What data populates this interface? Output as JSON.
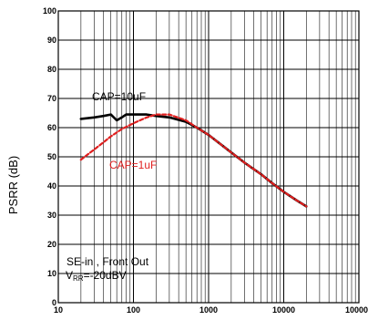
{
  "chart_data": {
    "type": "line",
    "title": "",
    "xlabel": "",
    "ylabel": "PSRR (dB)",
    "x_scale": "log",
    "xlim": [
      10,
      100000
    ],
    "ylim": [
      0,
      100
    ],
    "x_ticks": [
      "10",
      "100",
      "1000",
      "10000",
      "100000"
    ],
    "y_ticks": [
      "0",
      "10",
      "20",
      "30",
      "40",
      "50",
      "60",
      "70",
      "80",
      "90",
      "100"
    ],
    "grid": true,
    "series": [
      {
        "name": "CAP=10uF",
        "color": "#000000",
        "style": "solid",
        "x": [
          20,
          30,
          40,
          50,
          60,
          70,
          80,
          100,
          150,
          200,
          300,
          500,
          700,
          1000,
          1500,
          2000,
          3000,
          5000,
          7000,
          10000,
          15000,
          20000
        ],
        "y": [
          63,
          63.5,
          64,
          64.5,
          62.5,
          63.5,
          64.5,
          64.5,
          64.5,
          64,
          63.5,
          62,
          60,
          57.5,
          54,
          51.5,
          48,
          44,
          41,
          38,
          35,
          33
        ]
      },
      {
        "name": "CAP=1uF",
        "color": "#e01f1f",
        "style": "dashed",
        "x": [
          20,
          30,
          40,
          50,
          70,
          100,
          150,
          200,
          300,
          500,
          700,
          1000,
          1500,
          2000,
          3000,
          5000,
          7000,
          10000,
          15000,
          20000
        ],
        "y": [
          49,
          52.5,
          55,
          57,
          59.5,
          61.5,
          63.5,
          64.5,
          64.5,
          62.5,
          60,
          57.5,
          54,
          51.5,
          48,
          44,
          41,
          38,
          35,
          33
        ]
      }
    ],
    "annotations": {
      "cap10": "CAP=10uF",
      "cap1": "CAP=1uF",
      "note_line1": "SE-in , Front Out",
      "note_line2_prefix": "V",
      "note_line2_sub": "RR",
      "note_line2_suffix": "=-20dBV"
    }
  }
}
